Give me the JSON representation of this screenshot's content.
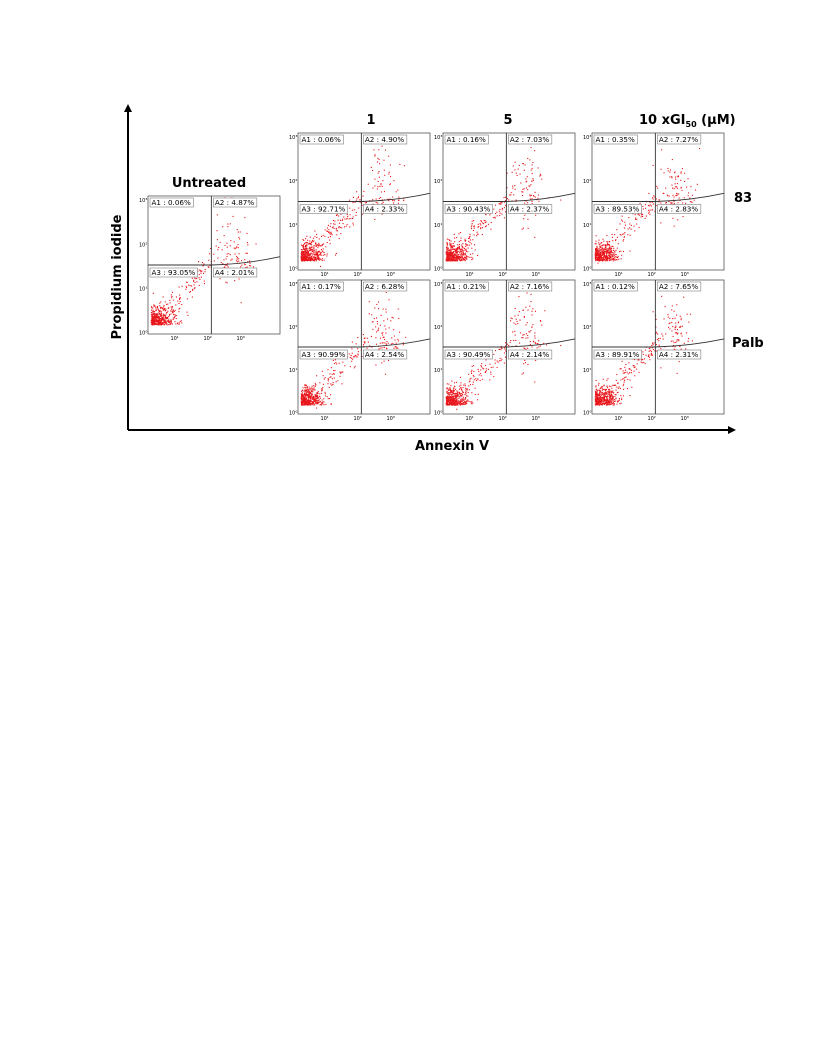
{
  "figure": {
    "y_axis_label": "Propidium iodide",
    "x_axis_label": "Annexin V",
    "column_headers": {
      "c1": "1",
      "c5": "5",
      "c10_prefix": "10 xGI",
      "c10_subscript": "50",
      "c10_suffix": " (μM)"
    },
    "row_labels": {
      "r83": "83",
      "palb": "Palb"
    },
    "untreated_label": "Untreated",
    "tick_labels": [
      "10⁰",
      "10¹",
      "10²",
      "10³"
    ]
  },
  "colors": {
    "points": "#e8161b",
    "axes": "#000000",
    "frame": "#555555"
  },
  "chart_data": [
    {
      "type": "scatter",
      "title": "Untreated",
      "treatment": "Untreated",
      "xscale": "log",
      "yscale": "log",
      "quadrants": [
        {
          "name": "A1",
          "value": "0.06%"
        },
        {
          "name": "A2",
          "value": "4.87%"
        },
        {
          "name": "A3",
          "value": "93.05%"
        },
        {
          "name": "A4",
          "value": "2.01%"
        }
      ]
    },
    {
      "type": "scatter",
      "treatment": "83",
      "dose": "1",
      "xscale": "log",
      "yscale": "log",
      "quadrants": [
        {
          "name": "A1",
          "value": "0.06%"
        },
        {
          "name": "A2",
          "value": "4.90%"
        },
        {
          "name": "A3",
          "value": "92.71%"
        },
        {
          "name": "A4",
          "value": "2.33%"
        }
      ]
    },
    {
      "type": "scatter",
      "treatment": "83",
      "dose": "5",
      "xscale": "log",
      "yscale": "log",
      "quadrants": [
        {
          "name": "A1",
          "value": "0.16%"
        },
        {
          "name": "A2",
          "value": "7.03%"
        },
        {
          "name": "A3",
          "value": "90.43%"
        },
        {
          "name": "A4",
          "value": "2.37%"
        }
      ]
    },
    {
      "type": "scatter",
      "treatment": "83",
      "dose": "10",
      "xscale": "log",
      "yscale": "log",
      "quadrants": [
        {
          "name": "A1",
          "value": "0.35%"
        },
        {
          "name": "A2",
          "value": "7.27%"
        },
        {
          "name": "A3",
          "value": "89.53%"
        },
        {
          "name": "A4",
          "value": "2.83%"
        }
      ]
    },
    {
      "type": "scatter",
      "treatment": "Palb",
      "dose": "1",
      "xscale": "log",
      "yscale": "log",
      "quadrants": [
        {
          "name": "A1",
          "value": "0.17%"
        },
        {
          "name": "A2",
          "value": "6.28%"
        },
        {
          "name": "A3",
          "value": "90.99%"
        },
        {
          "name": "A4",
          "value": "2.54%"
        }
      ]
    },
    {
      "type": "scatter",
      "treatment": "Palb",
      "dose": "5",
      "xscale": "log",
      "yscale": "log",
      "quadrants": [
        {
          "name": "A1",
          "value": "0.21%"
        },
        {
          "name": "A2",
          "value": "7.16%"
        },
        {
          "name": "A3",
          "value": "90.49%"
        },
        {
          "name": "A4",
          "value": "2.14%"
        }
      ]
    },
    {
      "type": "scatter",
      "treatment": "Palb",
      "dose": "10",
      "xscale": "log",
      "yscale": "log",
      "quadrants": [
        {
          "name": "A1",
          "value": "0.12%"
        },
        {
          "name": "A2",
          "value": "7.65%"
        },
        {
          "name": "A3",
          "value": "89.91%"
        },
        {
          "name": "A4",
          "value": "2.31%"
        }
      ]
    }
  ]
}
